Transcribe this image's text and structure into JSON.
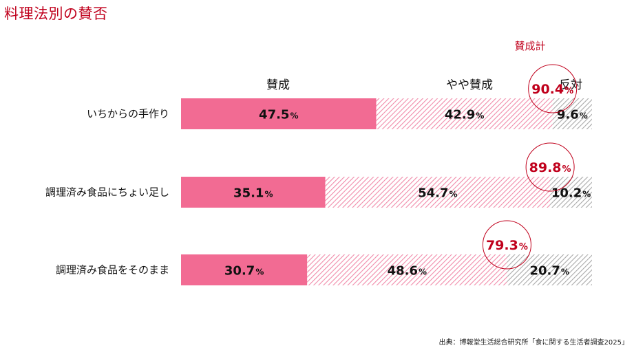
{
  "header": {
    "title": "料理法別の賛否"
  },
  "source": "出典：博報堂生活総合研究所「食に関する生活者調査2025」",
  "chart_data": {
    "type": "bar",
    "orientation": "horizontal",
    "stacked": true,
    "title": "料理法別の賛否",
    "categories": [
      "いちからの手作り",
      "調理済み食品にちょい足し",
      "調理済み食品をそのまま"
    ],
    "series": [
      {
        "name": "賛成",
        "values": [
          47.5,
          35.1,
          30.7
        ]
      },
      {
        "name": "やや賛成",
        "values": [
          42.9,
          54.7,
          48.6
        ]
      },
      {
        "name": "反対",
        "values": [
          9.6,
          10.2,
          20.7
        ]
      }
    ],
    "totals": {
      "label": "賛成計",
      "values": [
        90.4,
        89.8,
        79.3
      ]
    },
    "unit": "%",
    "xlim": [
      0,
      100
    ],
    "legend_placement": "top",
    "colors": {
      "agree": "#f26b93",
      "somewhat_agree_stripe": "#f08aa9",
      "disagree_stripe": "#a9a9a9",
      "total": "#c0001c"
    }
  }
}
